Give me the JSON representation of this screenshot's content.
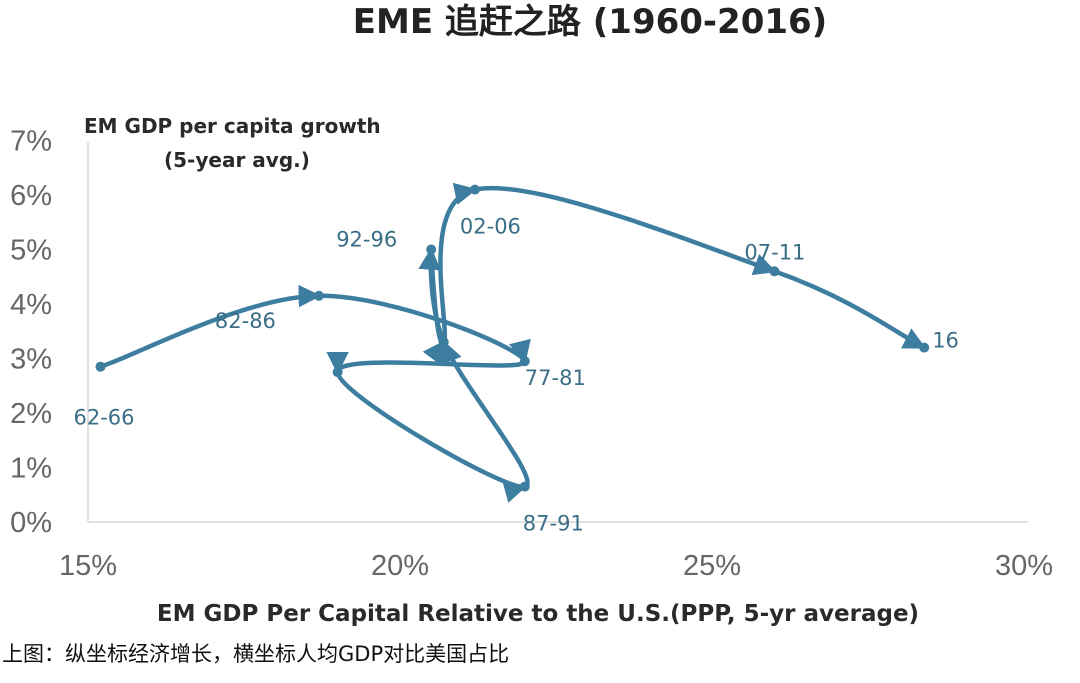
{
  "chart_data": {
    "type": "line",
    "title": "EME 追赶之路 (1960-2016)",
    "ylabel_line1": "EM GDP per capita growth",
    "ylabel_line2": "(5-year avg.)",
    "xlabel": "EM GDP Per Capital Relative to the U.S.(PPP, 5-yr average)",
    "xlim": [
      15,
      30
    ],
    "ylim": [
      0,
      7
    ],
    "x_ticks": [
      "15%",
      "20%",
      "25%",
      "30%"
    ],
    "y_ticks": [
      "0%",
      "1%",
      "2%",
      "3%",
      "4%",
      "5%",
      "6%",
      "7%"
    ],
    "grid": false,
    "series_color": "#3d7ea0",
    "series": [
      {
        "x": [
          15.2,
          18.7,
          22.0,
          19.0,
          22.0,
          20.7,
          20.5,
          20.7,
          21.2,
          26.0,
          28.4
        ],
        "y": [
          2.85,
          4.15,
          2.95,
          2.75,
          0.65,
          3.3,
          5.0,
          3.3,
          6.1,
          4.6,
          3.2
        ]
      }
    ],
    "point_labels": [
      "62-66",
      "82-86",
      "77-81",
      "87-91",
      "92-96",
      "02-06",
      "07-11",
      "16"
    ]
  },
  "caption": "上图：纵坐标经济增长，横坐标人均GDP对比美国占比"
}
